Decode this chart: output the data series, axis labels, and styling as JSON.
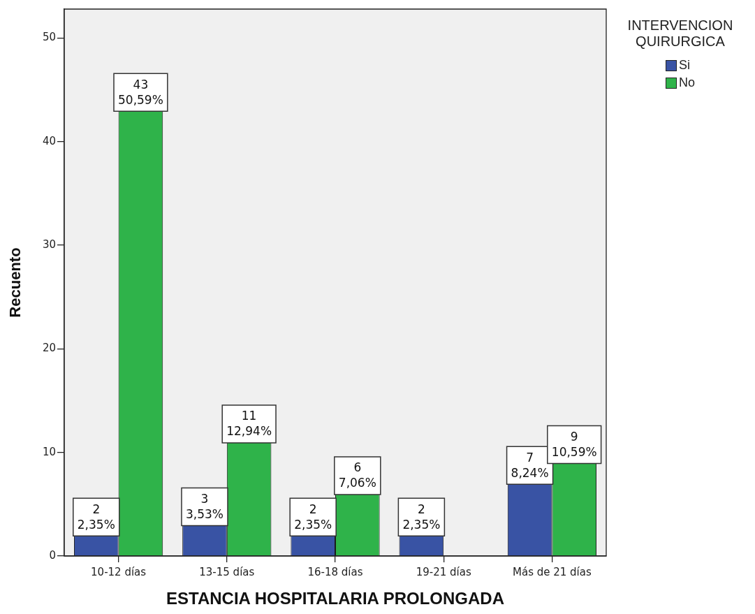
{
  "chart_data": {
    "type": "bar",
    "categories": [
      "10-12 días",
      "13-15 días",
      "16-18 días",
      "19-21 días",
      "Más de 21 días"
    ],
    "series": [
      {
        "name": "Si",
        "color": "#3953a4",
        "values": [
          2,
          3,
          2,
          2,
          7
        ],
        "value_labels": [
          "2\n2,35%",
          "3\n3,53%",
          "2\n2,35%",
          "2\n2,35%",
          "7\n8,24%"
        ]
      },
      {
        "name": "No",
        "color": "#2fb34a",
        "values": [
          43,
          11,
          6,
          null,
          9
        ],
        "value_labels": [
          "43\n50,59%",
          "11\n12,94%",
          "6\n7,06%",
          null,
          "9\n10,59%"
        ]
      }
    ],
    "xlabel": "ESTANCIA HOSPITALARIA PROLONGADA",
    "ylabel": "Recuento",
    "legend_title": "INTERVENCION QUIRURGICA",
    "legend": "top right",
    "ylim": [
      0,
      52.8
    ],
    "yticks": [
      0,
      10,
      20,
      30,
      40,
      50
    ]
  }
}
